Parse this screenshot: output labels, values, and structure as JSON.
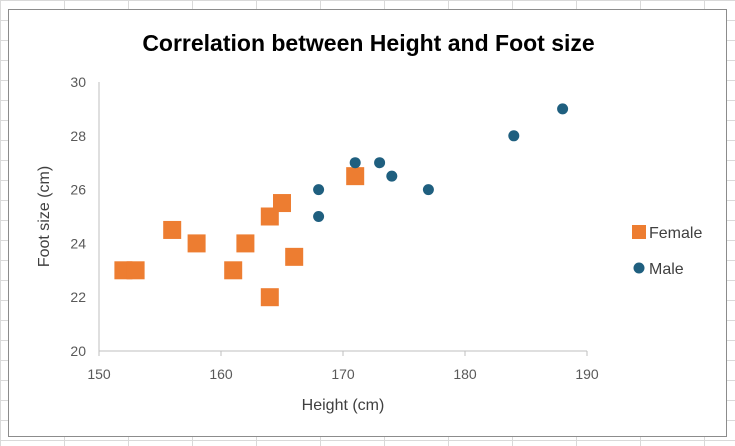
{
  "chart_data": {
    "type": "scatter",
    "title": "Correlation between Height and Foot size",
    "xlabel": "Height (cm)",
    "ylabel": "Foot size (cm)",
    "xlim": [
      150,
      190
    ],
    "ylim": [
      20,
      30
    ],
    "x_ticks": [
      150,
      160,
      170,
      180,
      190
    ],
    "y_ticks": [
      20,
      22,
      24,
      26,
      28,
      30
    ],
    "grid": false,
    "legend_position": "right",
    "series": [
      {
        "name": "Female",
        "marker": "square",
        "color": "#ED7D31",
        "points": [
          {
            "x": 152,
            "y": 23
          },
          {
            "x": 153,
            "y": 23
          },
          {
            "x": 156,
            "y": 24.5
          },
          {
            "x": 158,
            "y": 24
          },
          {
            "x": 161,
            "y": 23
          },
          {
            "x": 162,
            "y": 24
          },
          {
            "x": 164,
            "y": 25
          },
          {
            "x": 164,
            "y": 22
          },
          {
            "x": 165,
            "y": 25.5
          },
          {
            "x": 166,
            "y": 23.5
          },
          {
            "x": 171,
            "y": 26.5
          }
        ]
      },
      {
        "name": "Male",
        "marker": "circle",
        "color": "#1F5F7F",
        "points": [
          {
            "x": 168,
            "y": 26
          },
          {
            "x": 168,
            "y": 25
          },
          {
            "x": 171,
            "y": 27
          },
          {
            "x": 173,
            "y": 27
          },
          {
            "x": 174,
            "y": 26.5
          },
          {
            "x": 177,
            "y": 26
          },
          {
            "x": 184,
            "y": 28
          },
          {
            "x": 188,
            "y": 29
          }
        ]
      }
    ]
  }
}
